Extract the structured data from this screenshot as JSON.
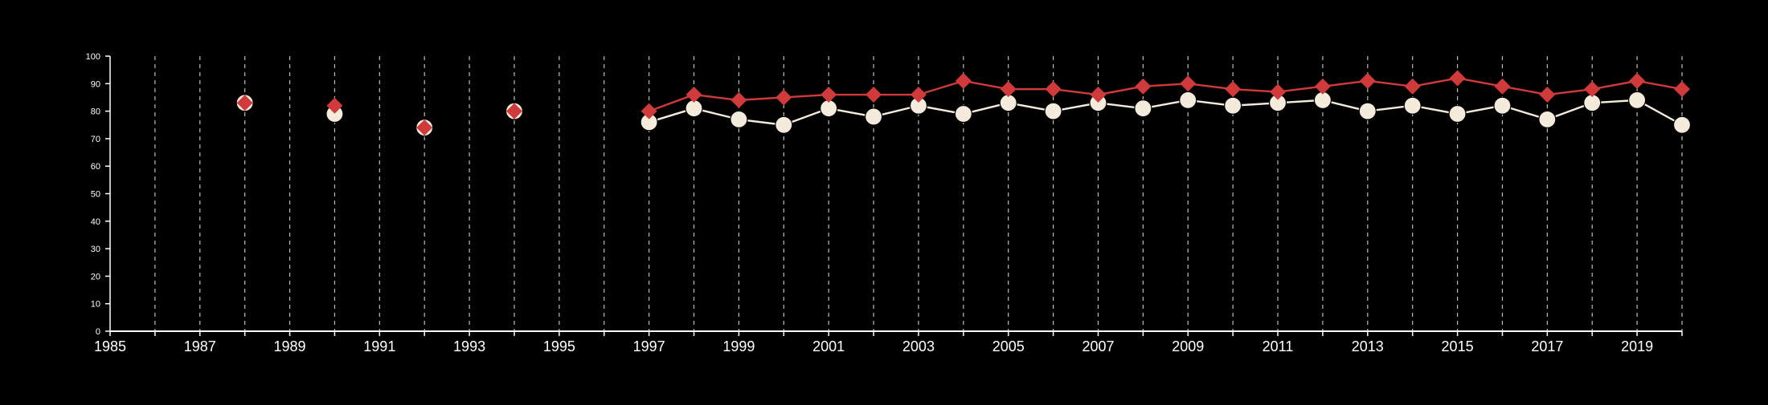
{
  "chart_data": {
    "type": "line",
    "title": "",
    "xlabel": "",
    "ylabel": "",
    "xlim": [
      1985,
      2020
    ],
    "ylim": [
      0,
      100
    ],
    "x_ticks": [
      1985,
      1987,
      1989,
      1991,
      1993,
      1995,
      1997,
      1999,
      2001,
      2003,
      2005,
      2007,
      2009,
      2011,
      2013,
      2015,
      2017,
      2019
    ],
    "x_tick_labels": [
      "1985",
      "1987",
      "1989",
      "1991",
      "1993",
      "1995",
      "1997",
      "1999",
      "2001",
      "2003",
      "2005",
      "2007",
      "2009",
      "2011",
      "2013",
      "2015",
      "2017",
      "2019"
    ],
    "y_ticks": [
      0,
      10,
      20,
      30,
      40,
      50,
      60,
      70,
      80,
      90,
      100
    ],
    "y_tick_labels": [
      "0",
      "10",
      "20",
      "30",
      "40",
      "50",
      "60",
      "70",
      "80",
      "90",
      "100"
    ],
    "grid": "vertical dashed lines at every year",
    "legend": "none",
    "series": [
      {
        "color": "#d13a3a",
        "marker": "diamond",
        "values": [
          [
            1988,
            83
          ],
          [
            1990,
            82
          ],
          [
            1992,
            74
          ],
          [
            1994,
            80
          ],
          [
            1997,
            80
          ],
          [
            1998,
            86
          ],
          [
            1999,
            84
          ],
          [
            2000,
            85
          ],
          [
            2001,
            86
          ],
          [
            2002,
            86
          ],
          [
            2003,
            86
          ],
          [
            2004,
            91
          ],
          [
            2005,
            88
          ],
          [
            2006,
            88
          ],
          [
            2007,
            86
          ],
          [
            2008,
            89
          ],
          [
            2009,
            90
          ],
          [
            2010,
            88
          ],
          [
            2011,
            87
          ],
          [
            2012,
            89
          ],
          [
            2013,
            91
          ],
          [
            2014,
            89
          ],
          [
            2015,
            92
          ],
          [
            2016,
            89
          ],
          [
            2017,
            86
          ],
          [
            2018,
            88
          ],
          [
            2019,
            91
          ],
          [
            2020,
            88
          ]
        ]
      },
      {
        "color": "#f5ebdc",
        "marker": "circle",
        "values": [
          [
            1988,
            83
          ],
          [
            1990,
            79
          ],
          [
            1992,
            74
          ],
          [
            1994,
            80
          ],
          [
            1997,
            76
          ],
          [
            1998,
            81
          ],
          [
            1999,
            77
          ],
          [
            2000,
            75
          ],
          [
            2001,
            81
          ],
          [
            2002,
            78
          ],
          [
            2003,
            82
          ],
          [
            2004,
            79
          ],
          [
            2005,
            83
          ],
          [
            2006,
            80
          ],
          [
            2007,
            83
          ],
          [
            2008,
            81
          ],
          [
            2009,
            84
          ],
          [
            2010,
            82
          ],
          [
            2011,
            83
          ],
          [
            2012,
            84
          ],
          [
            2013,
            80
          ],
          [
            2014,
            82
          ],
          [
            2015,
            79
          ],
          [
            2016,
            82
          ],
          [
            2017,
            77
          ],
          [
            2018,
            83
          ],
          [
            2019,
            84
          ],
          [
            2020,
            75
          ]
        ]
      }
    ]
  }
}
